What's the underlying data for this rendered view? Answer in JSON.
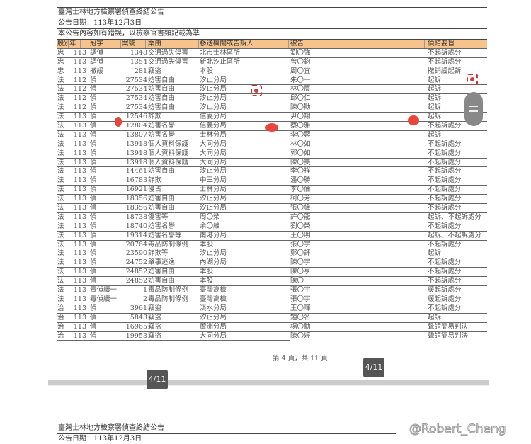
{
  "title": "臺灣士林地方檢察署偵查終結公告",
  "date": "公告日期：113年12月3日",
  "notice": "本公告內容如有錯誤，以檢察官書類記載為準",
  "columns": [
    "股別",
    "年",
    "冠字",
    "案號",
    "案由",
    "移送機關或告訴人",
    "被告",
    "偵結要旨"
  ],
  "rows": [
    [
      "忠",
      "113",
      "調偵",
      "1348",
      "交通過失傷害",
      "北市士林區所",
      "劉〇強",
      "不起訴處分"
    ],
    [
      "忠",
      "113",
      "調偵",
      "1354",
      "交通過失傷害",
      "新北汐止區所",
      "曾〇鈞",
      "不起訴處分"
    ],
    [
      "忠",
      "113",
      "撤緩",
      "281",
      "竊盜",
      "本股",
      "周〇宜",
      "撤銷緩起訴"
    ],
    [
      "法",
      "112",
      "偵",
      "27534",
      "妨害自由",
      "汐止分局",
      "朱〇一",
      "起訴"
    ],
    [
      "法",
      "112",
      "偵",
      "27534",
      "妨害自由",
      "汐止分局",
      "林〇宸",
      "起訴"
    ],
    [
      "法",
      "112",
      "偵",
      "27534",
      "妨害自由",
      "汐止分局",
      "邱〇仁",
      "起訴"
    ],
    [
      "法",
      "112",
      "偵",
      "27534",
      "妨害自由",
      "汐止分局",
      "陳〇勛",
      "起訴"
    ],
    [
      "法",
      "113",
      "偵",
      "12546",
      "詐欺",
      "信義分局",
      "尹〇翔",
      "起訴"
    ],
    [
      "法",
      "113",
      "偵",
      "12804",
      "妨害名譽",
      "信義分局",
      "蔡〇雅",
      "不起訴處分"
    ],
    [
      "法",
      "113",
      "偵",
      "13807",
      "妨害名譽",
      "士林分局",
      "李〇蓉",
      "起訴"
    ],
    [
      "法",
      "113",
      "偵",
      "13918",
      "個人資料保護",
      "大同分局",
      "林〇如",
      "不起訴處分"
    ],
    [
      "法",
      "113",
      "偵",
      "13918",
      "個人資料保護",
      "大同分局",
      "郭〇如",
      "不起訴處分"
    ],
    [
      "法",
      "113",
      "偵",
      "13918",
      "個人資料保護",
      "大同分局",
      "陳〇美",
      "不起訴處分"
    ],
    [
      "法",
      "113",
      "偵",
      "14461",
      "妨害自由",
      "汐止分局",
      "李〇祥",
      "不起訴處分"
    ],
    [
      "法",
      "113",
      "偵",
      "16783",
      "詐欺",
      "中三分局",
      "潘〇勝",
      "不起訴處分"
    ],
    [
      "法",
      "113",
      "偵",
      "16921",
      "侵占",
      "士林分局",
      "李〇倫",
      "不起訴處分"
    ],
    [
      "法",
      "113",
      "偵",
      "18356",
      "妨害自由",
      "汐止分局",
      "柯〇芳",
      "不起訴處分"
    ],
    [
      "法",
      "113",
      "偵",
      "18356",
      "妨害自由",
      "汐止分局",
      "張〇維",
      "不起訴處分"
    ],
    [
      "法",
      "113",
      "偵",
      "18738",
      "傷害等",
      "周〇榮",
      "許〇龍",
      "起訴、不起訴處分"
    ],
    [
      "法",
      "113",
      "偵",
      "18740",
      "妨害名譽",
      "余〇維",
      "劉〇榮",
      "不起訴處分"
    ],
    [
      "法",
      "113",
      "偵",
      "19314",
      "妨害名譽等",
      "南港分局",
      "王〇明",
      "起訴、不起訴處分"
    ],
    [
      "法",
      "113",
      "偵",
      "20764",
      "毒品防制條例",
      "本股",
      "張〇宇",
      "不起訴處分"
    ],
    [
      "法",
      "113",
      "偵",
      "23590",
      "詐欺等",
      "汐止分局",
      "鄭〇評",
      "起訴"
    ],
    [
      "法",
      "113",
      "偵",
      "24752",
      "肇事逃逸",
      "內湖分局",
      "陳〇宇",
      "不起訴處分"
    ],
    [
      "法",
      "113",
      "偵",
      "24852",
      "妨害自由",
      "本股",
      "陳〇亨",
      "不起訴處分"
    ],
    [
      "法",
      "113",
      "偵",
      "24852",
      "妨害自由",
      "本股",
      "陳〇",
      "不起訴處分"
    ],
    [
      "法",
      "113",
      "毒偵續一",
      "1",
      "毒品防制條例",
      "臺灣高檢",
      "張〇宇",
      "緩起訴處分"
    ],
    [
      "法",
      "113",
      "毒偵續一",
      "2",
      "毒品防制條例",
      "臺灣高檢",
      "張〇宇",
      "緩起訴處分"
    ],
    [
      "治",
      "113",
      "偵",
      "3961",
      "竊盜",
      "淡水分局",
      "王〇暉",
      "不起訴處分"
    ],
    [
      "治",
      "113",
      "偵",
      "5843",
      "竊盜",
      "汐止分局",
      "鍾〇名",
      "起訴"
    ],
    [
      "治",
      "113",
      "偵",
      "16965",
      "竊盜",
      "蘆洲分局",
      "楊〇勳",
      "聲請簡易判決"
    ],
    [
      "治",
      "113",
      "偵",
      "19953",
      "竊盜",
      "大同分局",
      "陳〇婷",
      "聲請簡易判決"
    ]
  ],
  "footer": "第 4 頁，共 11 頁",
  "page_indicator": "4/11",
  "next_page": {
    "title": "臺灣士林地方檢察署偵查終結公告",
    "date": "公告日期：113年12月3日"
  },
  "watermark": "@Robert_Cheng",
  "colors": {
    "header_bg": "#f6c38d",
    "marker": "#e8453c"
  }
}
